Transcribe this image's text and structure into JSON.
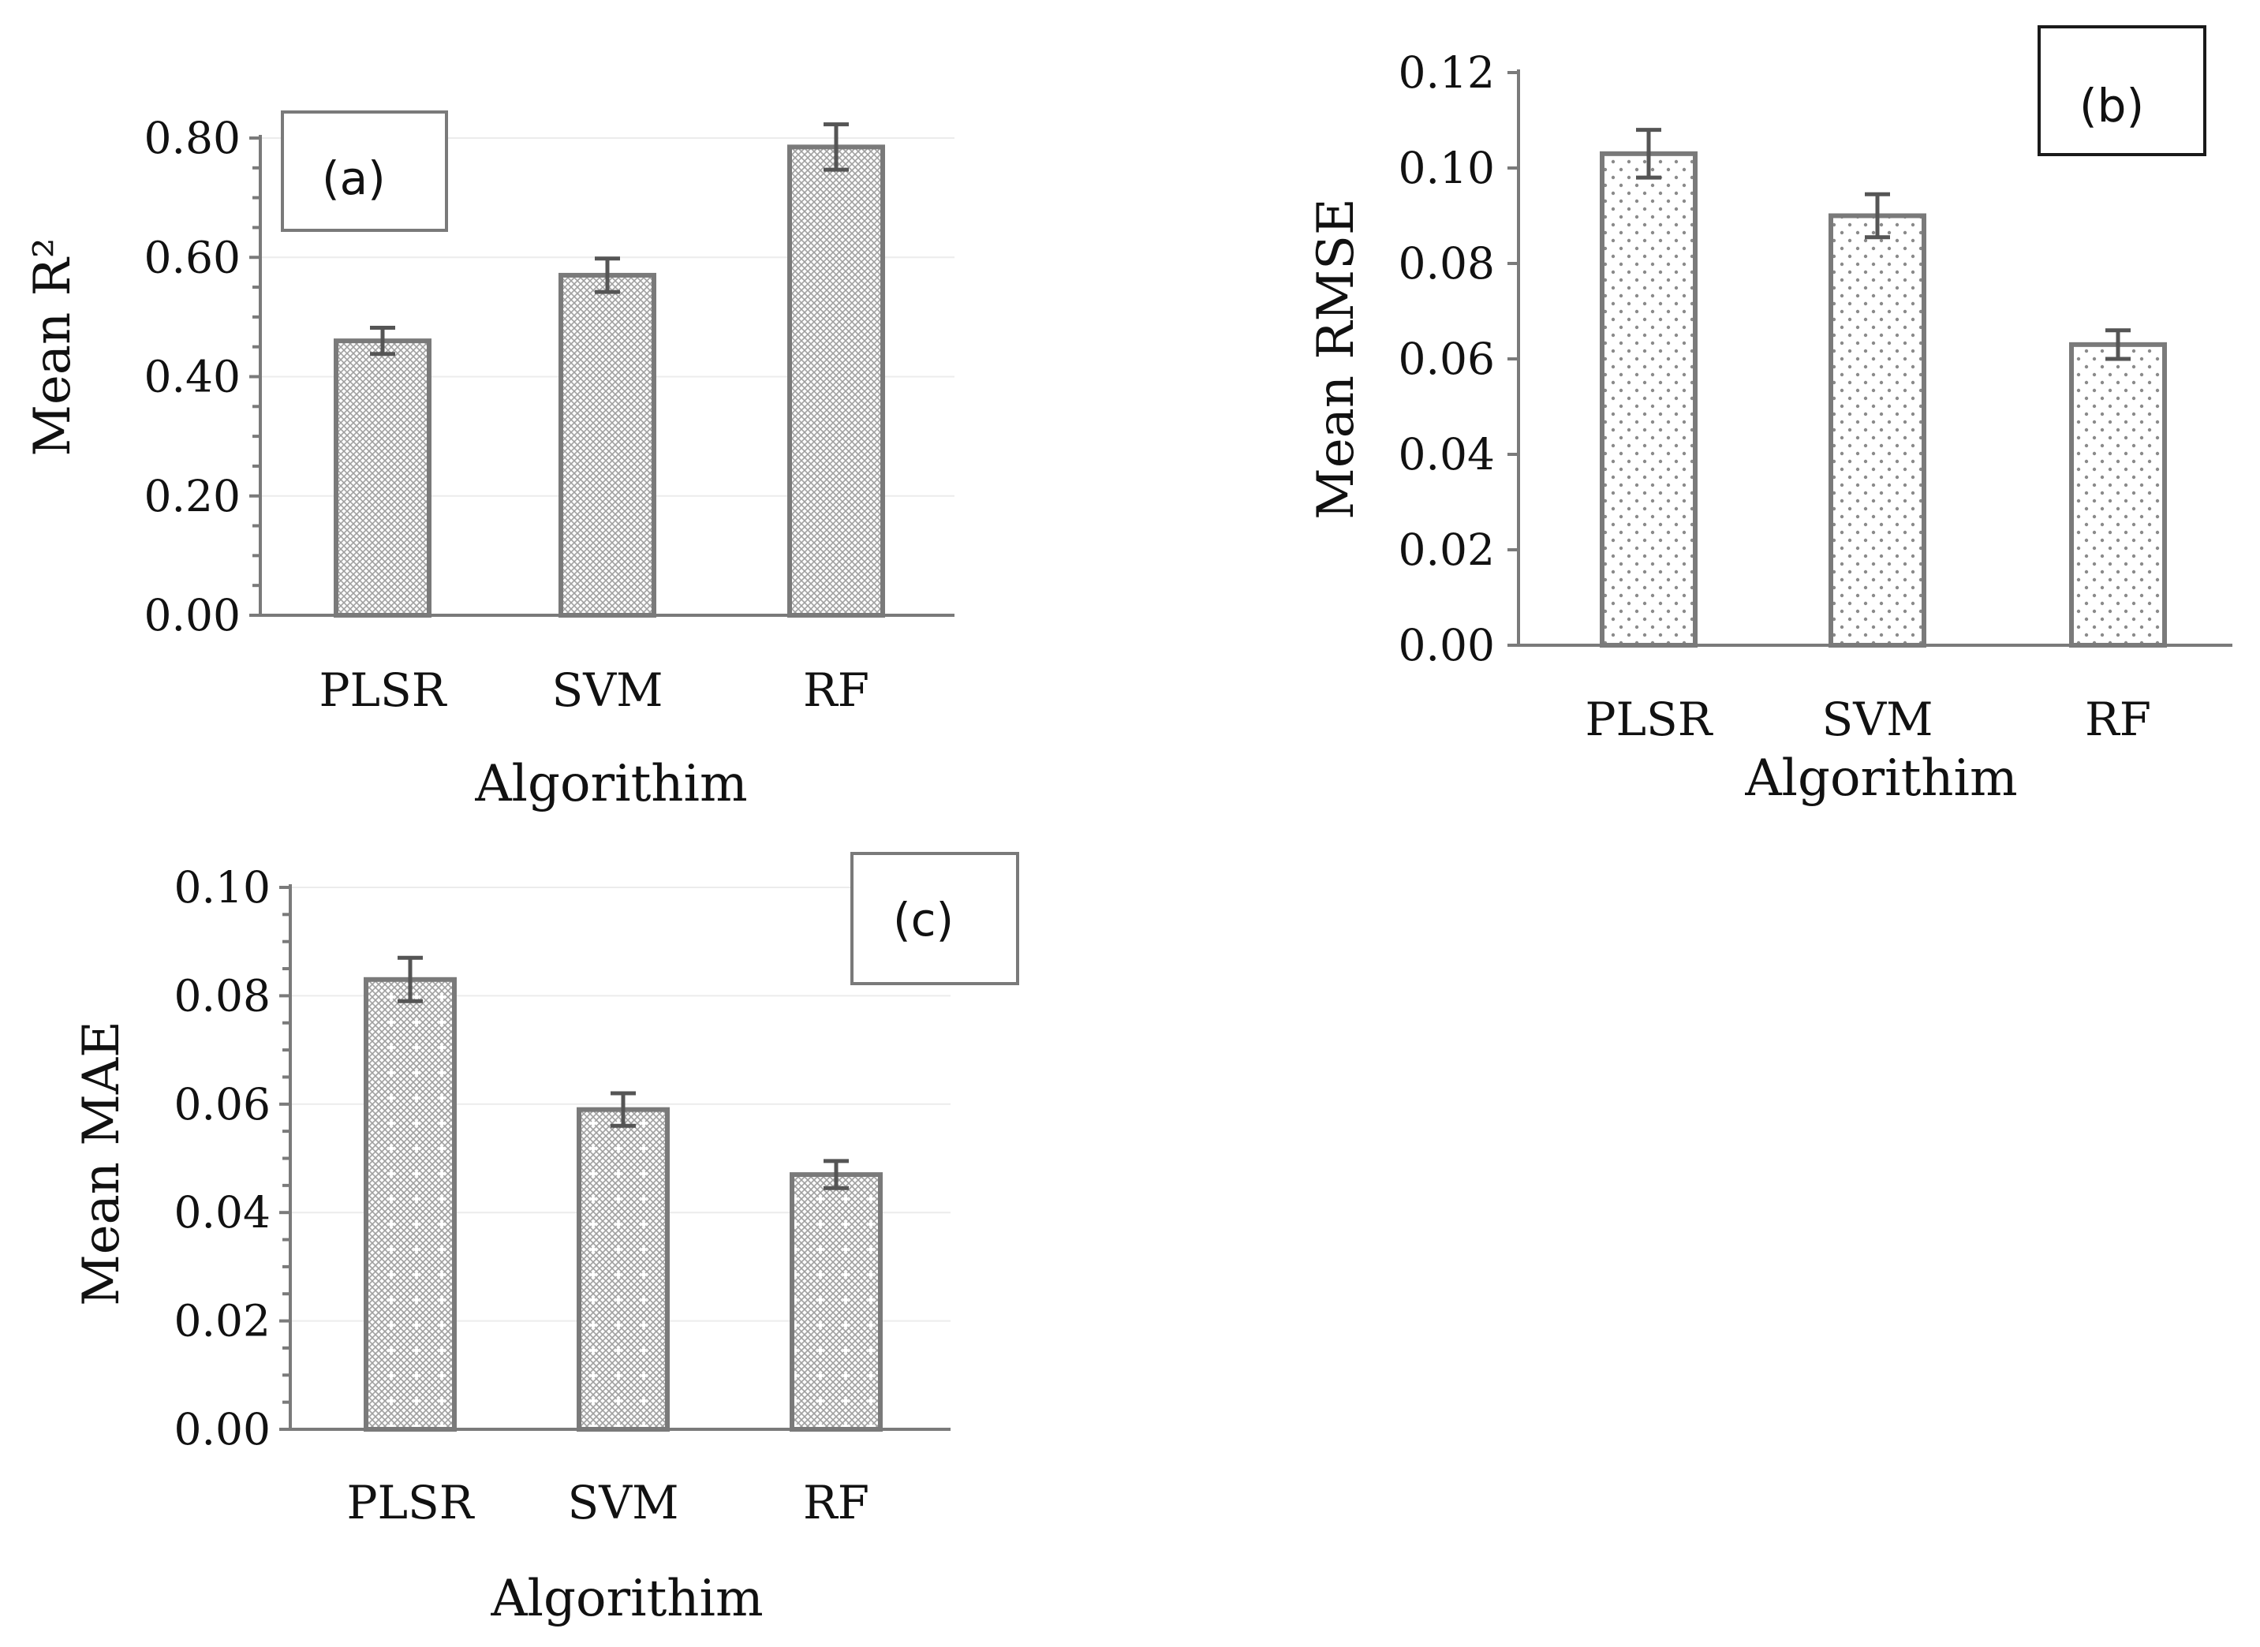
{
  "chart_data": [
    {
      "panel": "(a)",
      "type": "bar",
      "categories": [
        "PLSR",
        "SVM",
        "RF"
      ],
      "values": [
        0.46,
        0.57,
        0.785
      ],
      "errors": [
        0.022,
        0.028,
        0.038
      ],
      "xlabel": "Algorithim",
      "ylabel": "Mean R²",
      "ylim": [
        0,
        0.8
      ],
      "ytick_step": 0.2,
      "ytick_labels": [
        "0.00",
        "0.20",
        "0.40",
        "0.60",
        "0.80"
      ],
      "pattern": "crosshatch",
      "grid": true
    },
    {
      "panel": "(b)",
      "type": "bar",
      "categories": [
        "PLSR",
        "SVM",
        "RF"
      ],
      "values": [
        0.103,
        0.09,
        0.063
      ],
      "errors": [
        0.005,
        0.0045,
        0.003
      ],
      "xlabel": "Algorithim",
      "ylabel": "Mean RMSE",
      "ylim": [
        0,
        0.12
      ],
      "ytick_step": 0.02,
      "ytick_labels": [
        "0.00",
        "0.02",
        "0.04",
        "0.06",
        "0.08",
        "0.10",
        "0.12"
      ],
      "pattern": "dots",
      "grid": false
    },
    {
      "panel": "(c)",
      "type": "bar",
      "categories": [
        "PLSR",
        "SVM",
        "RF"
      ],
      "values": [
        0.083,
        0.059,
        0.047
      ],
      "errors": [
        0.004,
        0.003,
        0.0025
      ],
      "xlabel": "Algorithim",
      "ylabel": "Mean MAE",
      "ylim": [
        0,
        0.1
      ],
      "ytick_step": 0.02,
      "ytick_labels": [
        "0.00",
        "0.02",
        "0.04",
        "0.06",
        "0.08",
        "0.10"
      ],
      "pattern": "crosshatch-dots",
      "grid": true
    }
  ],
  "colors": {
    "axis": "#7a7a7a",
    "bar_outline": "#7a7a7a",
    "pattern_fg": "#9a9a9a",
    "error_bar": "#555555",
    "text": "#111111"
  }
}
